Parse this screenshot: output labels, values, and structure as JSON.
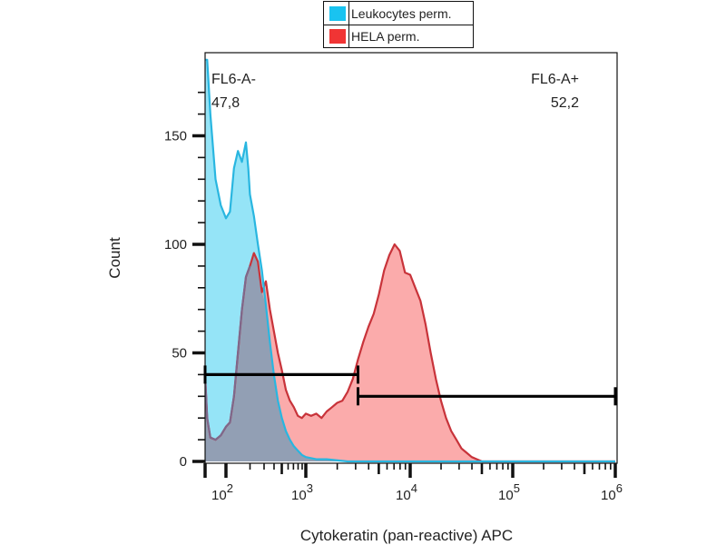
{
  "chart_data": {
    "type": "area",
    "title": "",
    "xlabel": "Cytokeratin (pan-reactive) APC",
    "ylabel": "Count",
    "xscale": "log10",
    "ylim": [
      0,
      180
    ],
    "yticks": [
      0,
      50,
      100,
      150
    ],
    "ytick_labels": [
      "0",
      "50",
      "100",
      "150"
    ],
    "xtick_base": "10",
    "xtick_exponents": [
      "2",
      "3",
      "4",
      "5",
      "6"
    ],
    "legend_position": "top-center",
    "series": [
      {
        "name": "Leukocytes perm.",
        "color": "#29b6e0",
        "fill": "#8fe3f7",
        "x_log10": [
          1.8,
          1.82,
          1.85,
          1.9,
          1.95,
          2.0,
          2.05,
          2.1,
          2.15,
          2.2,
          2.25,
          2.28,
          2.3,
          2.35,
          2.4,
          2.45,
          2.5,
          2.55,
          2.6,
          2.65,
          2.7,
          2.75,
          2.8,
          2.85,
          2.9,
          2.95,
          3.0,
          3.1,
          3.2,
          3.4,
          3.6,
          3.8,
          4.0,
          4.5,
          5.0,
          5.5,
          6.0
        ],
        "y": [
          185,
          185,
          160,
          130,
          118,
          112,
          115,
          135,
          143,
          138,
          147,
          135,
          123,
          113,
          100,
          88,
          72,
          55,
          40,
          28,
          20,
          14,
          10,
          7,
          5,
          3,
          2,
          1,
          1,
          0,
          0,
          0,
          0,
          0,
          0,
          0,
          0
        ]
      },
      {
        "name": "HELA perm.",
        "color": "#d93a3a",
        "fill": "#f98a8a",
        "x_log10": [
          1.8,
          1.82,
          1.85,
          1.9,
          1.95,
          2.0,
          2.05,
          2.1,
          2.15,
          2.2,
          2.25,
          2.3,
          2.35,
          2.4,
          2.45,
          2.5,
          2.55,
          2.6,
          2.65,
          2.7,
          2.75,
          2.8,
          2.85,
          2.9,
          2.95,
          3.0,
          3.05,
          3.1,
          3.15,
          3.2,
          3.25,
          3.3,
          3.35,
          3.4,
          3.45,
          3.5,
          3.55,
          3.6,
          3.65,
          3.7,
          3.75,
          3.8,
          3.85,
          3.9,
          3.95,
          4.0,
          4.05,
          4.1,
          4.15,
          4.2,
          4.25,
          4.3,
          4.35,
          4.4,
          4.45,
          4.5,
          4.55,
          4.6,
          4.65,
          4.7,
          4.75,
          4.8,
          4.85,
          4.9,
          4.95,
          5.0,
          5.05,
          5.1,
          5.15,
          5.2,
          5.25,
          5.3,
          5.4,
          5.6,
          6.0
        ],
        "y": [
          40,
          20,
          11,
          10,
          12,
          16,
          18,
          30,
          50,
          70,
          85,
          90,
          96,
          92,
          78,
          83,
          70,
          60,
          50,
          42,
          33,
          28,
          25,
          21,
          20,
          22,
          21,
          22,
          20,
          23,
          25,
          27,
          28,
          32,
          38,
          47,
          55,
          62,
          68,
          77,
          88,
          95,
          100,
          97,
          87,
          86,
          80,
          74,
          63,
          50,
          38,
          28,
          20,
          14,
          10,
          6,
          4,
          2,
          1,
          0,
          0,
          0,
          0,
          0,
          0,
          0,
          0,
          0,
          0,
          0,
          0,
          0,
          0,
          0,
          0
        ]
      }
    ],
    "gates": [
      {
        "name": "FL6-A-",
        "value": "47,8",
        "x_start_log10": 1.8,
        "x_end_log10": 3.5,
        "y_level": 40
      },
      {
        "name": "FL6-A+",
        "value": "52,2",
        "x_start_log10": 3.5,
        "x_end_log10": 6.0,
        "y_level": 30
      }
    ]
  }
}
